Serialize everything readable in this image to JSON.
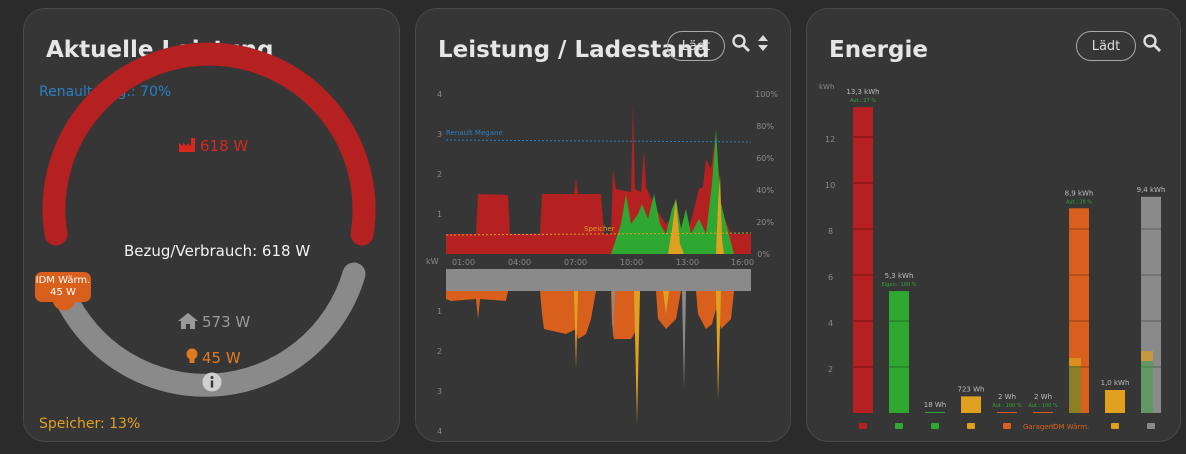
{
  "colors": {
    "grid": "#d6281f",
    "solar": "#2fa832",
    "battery": "#e0a020",
    "wallbox": "#d8601c",
    "house": "#8a8a8a",
    "car": "#2a7fc2"
  },
  "card1": {
    "title": "Aktuelle Leistung",
    "car_label": "Renault Meg.: 70%",
    "grid_value": "618 W",
    "center_label": "Bezug/Verbrauch: 618 W",
    "idm_label": "IDM Wärm.",
    "idm_value": "45 W",
    "house_value": "573 W",
    "bulb_value": "45 W",
    "storage_label": "Speicher: 13%"
  },
  "card2": {
    "title": "Leistung / Ladestand",
    "status_button": "Lädt",
    "y_ticks_top": [
      "4",
      "3",
      "2",
      "1"
    ],
    "y_ticks_right": [
      "100%",
      "80%",
      "60%",
      "40%",
      "20%",
      "0%"
    ],
    "y_ticks_bottom": [
      "1",
      "2",
      "3",
      "4"
    ],
    "unit_label": "kW",
    "x_ticks": [
      "01:00",
      "04:00",
      "07:00",
      "10:00",
      "13:00",
      "16:00"
    ],
    "line_label_car": "Renault Megane",
    "line_label_storage": "Speicher"
  },
  "card3": {
    "title": "Energie",
    "status_button": "Lädt",
    "unit_label": "kWh",
    "y_ticks": [
      "12",
      "10",
      "8",
      "6",
      "4",
      "2"
    ],
    "extra_label": "Garagenl.",
    "icon_labels": [
      "IDM Wärm."
    ],
    "bars": [
      {
        "value": "13,3 kWh",
        "sub": "Aut.: 27 %",
        "kwh": 13.3,
        "color": "#b52020",
        "icon": "factory-icon"
      },
      {
        "value": "5,3 kWh",
        "sub": "Eigen.: 100 %",
        "kwh": 5.3,
        "color": "#2fa832",
        "icon": "solar-panel-icon"
      },
      {
        "value": "18 Wh",
        "sub": "",
        "kwh": 0.018,
        "color": "#2fa832",
        "icon": "feed-in-icon"
      },
      {
        "value": "723 Wh",
        "sub": "",
        "kwh": 0.723,
        "color": "#e0a020",
        "icon": "battery-charge-icon"
      },
      {
        "value": "2 Wh",
        "sub": "Aut.: 100 %",
        "kwh": 0.002,
        "color": "#d8601c",
        "icon": "bulb-icon"
      },
      {
        "value": "2 Wh",
        "sub": "Aut.: 100 %",
        "kwh": 0.002,
        "color": "#d8601c",
        "icon": "garage-icon"
      },
      {
        "value": "8,9 kWh",
        "sub": "Aut.: 28 %",
        "kwh": 8.9,
        "color": "#d8601c",
        "icon": "heat-pump-icon"
      },
      {
        "value": "1,0 kWh",
        "sub": "",
        "kwh": 1.0,
        "color": "#e0a020",
        "icon": "battery-discharge-icon"
      },
      {
        "value": "9,4 kWh",
        "sub": "",
        "kwh": 9.4,
        "color": "#8a8a8a",
        "icon": "house-icon"
      }
    ]
  }
}
